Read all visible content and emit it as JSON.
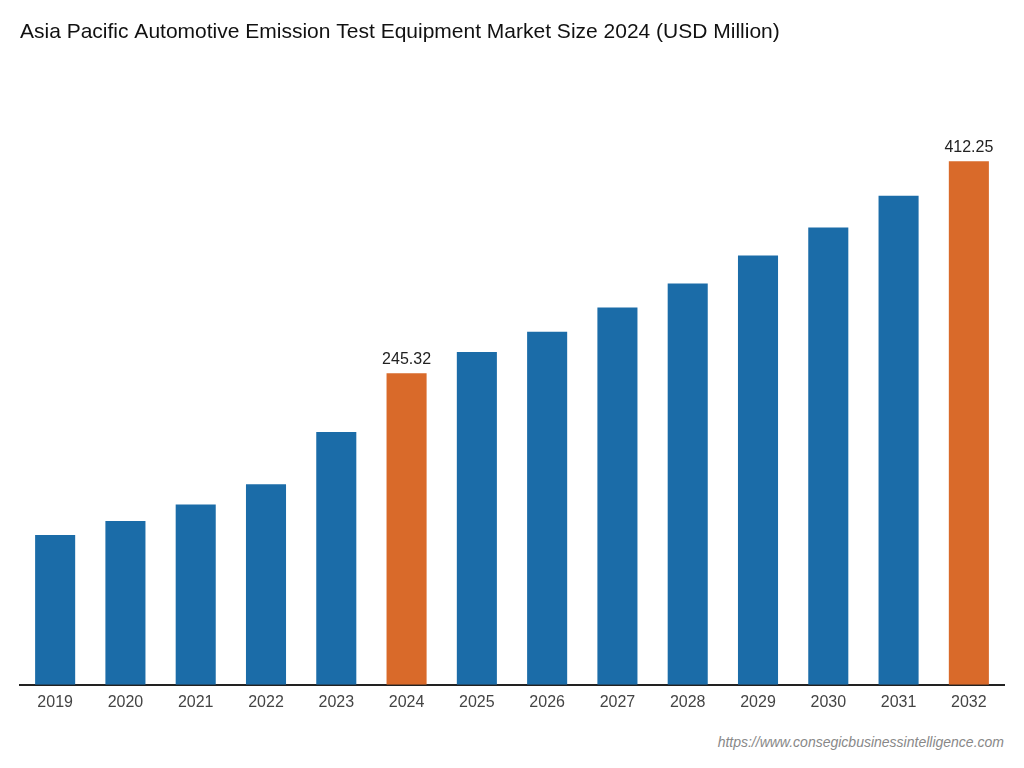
{
  "chart_data": {
    "type": "bar",
    "title": "Asia Pacific Automotive Emission Test Equipment Market Size 2024 (USD Million)",
    "categories": [
      "2019",
      "2020",
      "2021",
      "2022",
      "2023",
      "2024",
      "2025",
      "2026",
      "2027",
      "2028",
      "2029",
      "2030",
      "2031",
      "2032"
    ],
    "values": [
      118.0,
      129.0,
      142.0,
      158.0,
      199.0,
      245.32,
      262.0,
      278.0,
      297.0,
      316.0,
      338.0,
      360.0,
      385.0,
      412.25
    ],
    "value_labels": [
      null,
      null,
      null,
      null,
      null,
      "245.32",
      null,
      null,
      null,
      null,
      null,
      null,
      null,
      "412.25"
    ],
    "colors": [
      "#1b6ca8",
      "#1b6ca8",
      "#1b6ca8",
      "#1b6ca8",
      "#1b6ca8",
      "#d96a2a",
      "#1b6ca8",
      "#1b6ca8",
      "#1b6ca8",
      "#1b6ca8",
      "#1b6ca8",
      "#1b6ca8",
      "#1b6ca8",
      "#d96a2a"
    ],
    "ylim": [
      0,
      480
    ],
    "grid": false,
    "tick_labels": "x",
    "annotations": [
      "https://www.consegicbusinessintelligence.com"
    ]
  }
}
